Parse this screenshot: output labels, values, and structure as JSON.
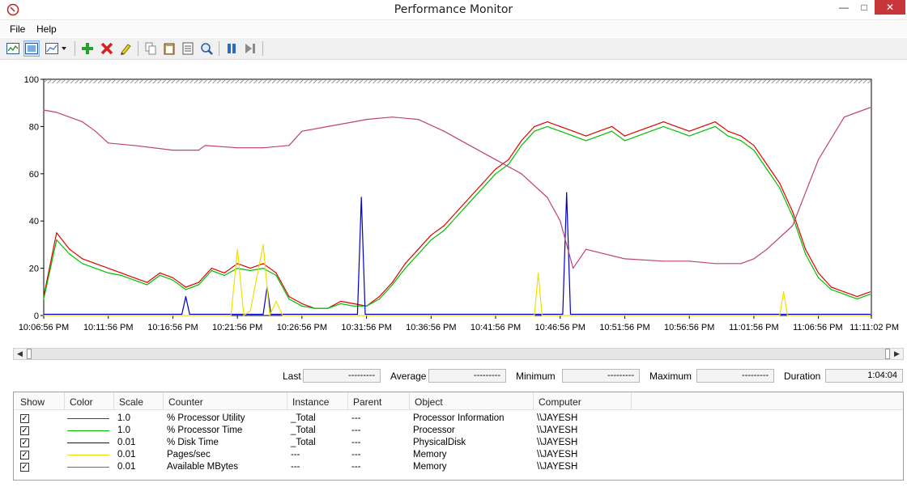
{
  "window": {
    "title": "Performance Monitor"
  },
  "menu": {
    "file": "File",
    "help": "Help"
  },
  "toolbar": {
    "buttons": [
      "view-current-activity-icon",
      "view-log-data-icon",
      "change-graph-type-icon",
      "add-icon",
      "delete-icon",
      "highlight-icon",
      "copy-properties-icon",
      "paste-counter-list-icon",
      "properties-icon",
      "zoom-icon",
      "freeze-display-icon",
      "update-data-icon"
    ]
  },
  "chart_data": {
    "type": "line",
    "ylim": [
      0,
      100
    ],
    "yticks": [
      "0",
      "20",
      "40",
      "60",
      "80",
      "100"
    ],
    "xticks": [
      "10:06:56 PM",
      "10:11:56 PM",
      "10:16:56 PM",
      "10:21:56 PM",
      "10:26:56 PM",
      "10:31:56 PM",
      "10:36:56 PM",
      "10:41:56 PM",
      "10:46:56 PM",
      "10:51:56 PM",
      "10:56:56 PM",
      "11:01:56 PM",
      "11:06:56 PM",
      "11:11:02 PM"
    ],
    "x_minutes": [
      0,
      5,
      10,
      15,
      20,
      25,
      30,
      35,
      40,
      45,
      50,
      55,
      60,
      64.1
    ],
    "series": [
      {
        "color": "#e00000",
        "x": [
          0,
          1,
          2,
          3,
          4,
          5,
          6,
          7,
          8,
          9,
          10,
          11,
          12,
          13,
          14,
          15,
          16,
          17,
          18,
          19,
          20,
          21,
          22,
          23,
          24,
          25,
          26,
          27,
          28,
          29,
          30,
          31,
          32,
          33,
          34,
          35,
          36,
          37,
          38,
          39,
          40,
          41,
          42,
          43,
          44,
          45,
          46,
          47,
          48,
          49,
          50,
          51,
          52,
          53,
          54,
          55,
          56,
          57,
          58,
          59,
          60,
          61,
          62,
          63,
          64
        ],
        "values": [
          8,
          35,
          28,
          24,
          22,
          20,
          18,
          16,
          14,
          18,
          16,
          12,
          14,
          20,
          18,
          22,
          20,
          22,
          18,
          8,
          5,
          3,
          3,
          6,
          5,
          4,
          8,
          14,
          22,
          28,
          34,
          38,
          44,
          50,
          56,
          62,
          66,
          74,
          80,
          82,
          80,
          78,
          76,
          78,
          80,
          76,
          78,
          80,
          82,
          80,
          78,
          80,
          82,
          78,
          76,
          72,
          64,
          56,
          44,
          28,
          18,
          12,
          10,
          8,
          10
        ]
      },
      {
        "color": "#00c000",
        "x": [
          0,
          1,
          2,
          3,
          4,
          5,
          6,
          7,
          8,
          9,
          10,
          11,
          12,
          13,
          14,
          15,
          16,
          17,
          18,
          19,
          20,
          21,
          22,
          23,
          24,
          25,
          26,
          27,
          28,
          29,
          30,
          31,
          32,
          33,
          34,
          35,
          36,
          37,
          38,
          39,
          40,
          41,
          42,
          43,
          44,
          45,
          46,
          47,
          48,
          49,
          50,
          51,
          52,
          53,
          54,
          55,
          56,
          57,
          58,
          59,
          60,
          61,
          62,
          63,
          64
        ],
        "values": [
          7,
          32,
          26,
          22,
          20,
          18,
          17,
          15,
          13,
          17,
          15,
          11,
          13,
          19,
          17,
          20,
          19,
          20,
          17,
          7,
          4,
          3,
          3,
          5,
          4,
          4,
          7,
          13,
          20,
          26,
          32,
          36,
          42,
          48,
          54,
          60,
          64,
          72,
          78,
          80,
          78,
          76,
          74,
          76,
          78,
          74,
          76,
          78,
          80,
          78,
          76,
          78,
          80,
          76,
          74,
          70,
          62,
          54,
          42,
          26,
          16,
          11,
          9,
          7,
          9
        ]
      },
      {
        "color": "#0000cc",
        "x": [
          0,
          10.7,
          11,
          11.3,
          17,
          17.3,
          17.6,
          24.3,
          24.6,
          24.9,
          40.2,
          40.5,
          40.8,
          64
        ],
        "values": [
          0.5,
          0.5,
          8,
          0.5,
          0.5,
          12,
          0.5,
          0.5,
          50,
          0.5,
          0.5,
          52,
          0.5,
          0.5
        ]
      },
      {
        "color": "#f0e000",
        "x": [
          0,
          14.5,
          15,
          15.5,
          16,
          17,
          17.5,
          18,
          18.5,
          38,
          38.3,
          38.6,
          57,
          57.3,
          57.6,
          64
        ],
        "values": [
          0,
          0,
          28,
          0,
          2,
          30,
          0,
          6,
          0,
          0,
          18,
          0,
          0,
          10,
          0,
          0
        ]
      },
      {
        "color": "#c0407a",
        "x": [
          0,
          1,
          3,
          4,
          5,
          7,
          10,
          12,
          12.5,
          15,
          17,
          19,
          20,
          22,
          24,
          25,
          27,
          29,
          31,
          33,
          35,
          37,
          39,
          40,
          40.5,
          41,
          42,
          45,
          48,
          50,
          52,
          54,
          55,
          56,
          58,
          60,
          62,
          64
        ],
        "values": [
          87,
          86,
          82,
          78,
          73,
          72,
          70,
          70,
          72,
          71,
          71,
          72,
          78,
          80,
          82,
          83,
          84,
          83,
          78,
          72,
          66,
          60,
          50,
          40,
          30,
          20,
          28,
          24,
          23,
          23,
          22,
          22,
          24,
          28,
          38,
          66,
          84,
          88
        ]
      }
    ]
  },
  "stats": {
    "last_label": "Last",
    "last_value": "---------",
    "average_label": "Average",
    "average_value": "---------",
    "minimum_label": "Minimum",
    "minimum_value": "---------",
    "maximum_label": "Maximum",
    "maximum_value": "---------",
    "duration_label": "Duration",
    "duration_value": "1:04:04"
  },
  "legend": {
    "headers": {
      "show": "Show",
      "color": "Color",
      "scale": "Scale",
      "counter": "Counter",
      "instance": "Instance",
      "parent": "Parent",
      "object": "Object",
      "computer": "Computer"
    },
    "rows": [
      {
        "color": "#e00000",
        "scale": "1.0",
        "counter": "% Processor Utility",
        "instance": "_Total",
        "parent": "---",
        "object": "Processor Information",
        "computer": "\\\\JAYESH"
      },
      {
        "color": "#00c000",
        "scale": "1.0",
        "counter": "% Processor Time",
        "instance": "_Total",
        "parent": "---",
        "object": "Processor",
        "computer": "\\\\JAYESH"
      },
      {
        "color": "#0000cc",
        "scale": "0.01",
        "counter": "% Disk Time",
        "instance": "_Total",
        "parent": "---",
        "object": "PhysicalDisk",
        "computer": "\\\\JAYESH"
      },
      {
        "color": "#f0e000",
        "scale": "0.01",
        "counter": "Pages/sec",
        "instance": "---",
        "parent": "---",
        "object": "Memory",
        "computer": "\\\\JAYESH"
      },
      {
        "color": "#c0407a",
        "scale": "0.01",
        "counter": "Available MBytes",
        "instance": "---",
        "parent": "---",
        "object": "Memory",
        "computer": "\\\\JAYESH"
      }
    ]
  }
}
